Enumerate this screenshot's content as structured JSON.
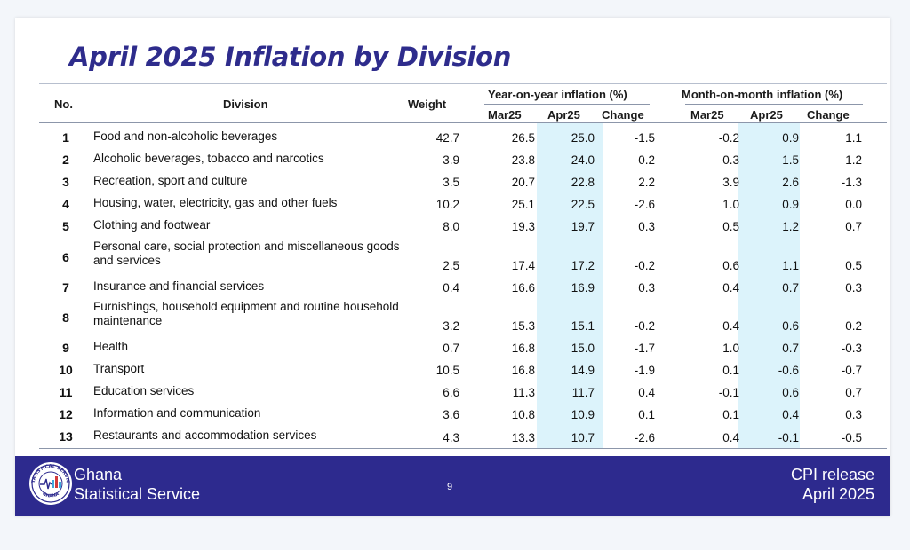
{
  "title": "April 2025 Inflation by Division",
  "headers": {
    "no": "No.",
    "division": "Division",
    "weight": "Weight",
    "yoy_group": "Year-on-year inflation (%)",
    "mom_group": "Month-on-month inflation (%)",
    "mar25": "Mar25",
    "apr25": "Apr25",
    "change": "Change"
  },
  "rows": [
    {
      "no": "1",
      "division": "Food and non-alcoholic beverages",
      "weight": "42.7",
      "yoy_mar": "26.5",
      "yoy_apr": "25.0",
      "yoy_chg": "-1.5",
      "mom_mar": "-0.2",
      "mom_apr": "0.9",
      "mom_chg": "1.1"
    },
    {
      "no": "2",
      "division": "Alcoholic beverages, tobacco and narcotics",
      "weight": "3.9",
      "yoy_mar": "23.8",
      "yoy_apr": "24.0",
      "yoy_chg": "0.2",
      "mom_mar": "0.3",
      "mom_apr": "1.5",
      "mom_chg": "1.2"
    },
    {
      "no": "3",
      "division": "Recreation, sport and culture",
      "weight": "3.5",
      "yoy_mar": "20.7",
      "yoy_apr": "22.8",
      "yoy_chg": "2.2",
      "mom_mar": "3.9",
      "mom_apr": "2.6",
      "mom_chg": "-1.3"
    },
    {
      "no": "4",
      "division": "Housing, water, electricity, gas and other fuels",
      "weight": "10.2",
      "yoy_mar": "25.1",
      "yoy_apr": "22.5",
      "yoy_chg": "-2.6",
      "mom_mar": "1.0",
      "mom_apr": "0.9",
      "mom_chg": "0.0"
    },
    {
      "no": "5",
      "division": "Clothing and footwear",
      "weight": "8.0",
      "yoy_mar": "19.3",
      "yoy_apr": "19.7",
      "yoy_chg": "0.3",
      "mom_mar": "0.5",
      "mom_apr": "1.2",
      "mom_chg": "0.7"
    },
    {
      "no": "6",
      "division": "Personal care, social protection and miscellaneous goods and services",
      "weight": "2.5",
      "yoy_mar": "17.4",
      "yoy_apr": "17.2",
      "yoy_chg": "-0.2",
      "mom_mar": "0.6",
      "mom_apr": "1.1",
      "mom_chg": "0.5"
    },
    {
      "no": "7",
      "division": "Insurance and financial services",
      "weight": "0.4",
      "yoy_mar": "16.6",
      "yoy_apr": "16.9",
      "yoy_chg": "0.3",
      "mom_mar": "0.4",
      "mom_apr": "0.7",
      "mom_chg": "0.3"
    },
    {
      "no": "8",
      "division": "Furnishings, household equipment and routine household maintenance",
      "weight": "3.2",
      "yoy_mar": "15.3",
      "yoy_apr": "15.1",
      "yoy_chg": "-0.2",
      "mom_mar": "0.4",
      "mom_apr": "0.6",
      "mom_chg": "0.2"
    },
    {
      "no": "9",
      "division": "Health",
      "weight": "0.7",
      "yoy_mar": "16.8",
      "yoy_apr": "15.0",
      "yoy_chg": "-1.7",
      "mom_mar": "1.0",
      "mom_apr": "0.7",
      "mom_chg": "-0.3"
    },
    {
      "no": "10",
      "division": "Transport",
      "weight": "10.5",
      "yoy_mar": "16.8",
      "yoy_apr": "14.9",
      "yoy_chg": "-1.9",
      "mom_mar": "0.1",
      "mom_apr": "-0.6",
      "mom_chg": "-0.7"
    },
    {
      "no": "11",
      "division": "Education services",
      "weight": "6.6",
      "yoy_mar": "11.3",
      "yoy_apr": "11.7",
      "yoy_chg": "0.4",
      "mom_mar": "-0.1",
      "mom_apr": "0.6",
      "mom_chg": "0.7"
    },
    {
      "no": "12",
      "division": "Information and communication",
      "weight": "3.6",
      "yoy_mar": "10.8",
      "yoy_apr": "10.9",
      "yoy_chg": "0.1",
      "mom_mar": "0.1",
      "mom_apr": "0.4",
      "mom_chg": "0.3"
    },
    {
      "no": "13",
      "division": "Restaurants and accommodation services",
      "weight": "4.3",
      "yoy_mar": "13.3",
      "yoy_apr": "10.7",
      "yoy_chg": "-2.6",
      "mom_mar": "0.4",
      "mom_apr": "-0.1",
      "mom_chg": "-0.5"
    }
  ],
  "footer": {
    "org_line1": "Ghana",
    "org_line2": "Statistical Service",
    "page_number": "9",
    "release_line1": "CPI release",
    "release_line2": "April  2025",
    "logo_icon": "ghana-statistical-service-logo",
    "logo_text_top": "STATISTICAL SERVICE",
    "logo_text_bottom": "GHANA"
  },
  "colors": {
    "title": "#2e2c8c",
    "footer_bg": "#2d2a8e",
    "highlight": "#dcf3fb"
  }
}
